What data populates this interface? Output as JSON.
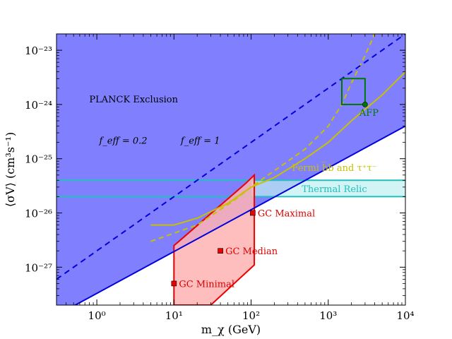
{
  "chart_data": {
    "type": "line",
    "xlabel": "m_χ (GeV)",
    "ylabel": "⟨σV⟩ (cm³s⁻¹)",
    "xscale": "log",
    "yscale": "log",
    "xlim": [
      0.3,
      10000
    ],
    "ylim": [
      2e-28,
      2e-23
    ],
    "xticks": [
      {
        "value": 1,
        "label": "10⁰"
      },
      {
        "value": 10,
        "label": "10¹"
      },
      {
        "value": 100,
        "label": "10²"
      },
      {
        "value": 1000,
        "label": "10³"
      },
      {
        "value": 10000,
        "label": "10⁴"
      }
    ],
    "yticks": [
      {
        "value": 1e-27,
        "label": "10⁻²⁷"
      },
      {
        "value": 1e-26,
        "label": "10⁻²⁶"
      },
      {
        "value": 1e-25,
        "label": "10⁻²⁵"
      },
      {
        "value": 1e-24,
        "label": "10⁻²⁴"
      },
      {
        "value": 1e-23,
        "label": "10⁻²³"
      }
    ],
    "planck_exclusion": {
      "label": "PLANCK Exclusion",
      "color": "#8080ff",
      "boundary_feff_1": {
        "label": "f_eff = 1",
        "x": [
          0.3,
          10000
        ],
        "y": [
          1.3e-28,
          4e-25
        ],
        "color": "#0000dd",
        "style": "solid"
      },
      "boundary_feff_02": {
        "label": "f_eff = 0.2",
        "x": [
          0.3,
          10000
        ],
        "y": [
          6e-28,
          2e-23
        ],
        "color": "#0000dd",
        "style": "dashed"
      }
    },
    "thermal_relic": {
      "label": "Thermal Relic",
      "ymin": 2e-26,
      "ymax": 4e-26,
      "xmin": 100,
      "xmax": 10000,
      "color": "#20c0c0"
    },
    "fermi": {
      "label": "Fermi b̅b and τ⁺τ⁻",
      "color": "#c8c000",
      "solid": {
        "x": [
          5,
          10,
          20,
          50,
          100,
          200,
          500,
          1000,
          2000,
          5000,
          10000
        ],
        "y": [
          6e-27,
          6e-27,
          8e-27,
          1.5e-26,
          3e-26,
          4.5e-26,
          1e-25,
          2e-25,
          5e-25,
          1.5e-24,
          4e-24
        ]
      },
      "dashed": {
        "x": [
          5,
          20,
          60,
          100,
          200,
          500,
          1000,
          1500,
          2000,
          3000,
          4000
        ],
        "y": [
          3e-27,
          6e-27,
          1.7e-26,
          3e-26,
          6e-26,
          1.5e-25,
          4e-25,
          1e-24,
          2.5e-24,
          8e-24,
          2e-23
        ]
      }
    },
    "gc_region": {
      "color": "#ffb3b3",
      "edge_color": "#ee0000",
      "x": [
        10,
        10,
        85,
        110,
        110,
        30
      ],
      "y": [
        2e-28,
        2.5e-27,
        3.5e-26,
        5e-26,
        1.1e-27,
        2e-28
      ]
    },
    "gc_points": [
      {
        "label": "GC Maximal",
        "x": 105,
        "y": 1e-26
      },
      {
        "label": "GC Median",
        "x": 40,
        "y": 2e-27
      },
      {
        "label": "GC Minimal",
        "x": 10,
        "y": 5e-28
      }
    ],
    "afp": {
      "label": "AFP",
      "color": "#007700",
      "box": {
        "xmin": 1500,
        "xmax": 3000,
        "ymin": 1e-24,
        "ymax": 3e-24
      },
      "point": {
        "x": 3000,
        "y": 1e-24
      }
    }
  }
}
